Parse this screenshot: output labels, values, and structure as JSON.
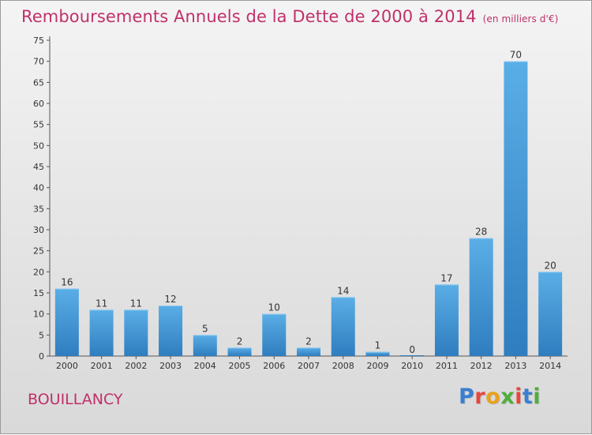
{
  "header": {
    "title": "Remboursements Annuels de la Dette de 2000 à 2014",
    "unit": "(en milliers d'€)"
  },
  "footer": {
    "commune": "BOUILLANCY",
    "logo": [
      "P",
      "r",
      "o",
      "x",
      "i",
      "t",
      "i"
    ]
  },
  "colors": {
    "title": "#c0306a",
    "bar_top": "#5aaee6",
    "bar_bottom": "#2f7dbf",
    "axis": "#333333"
  },
  "chart_data": {
    "type": "bar",
    "title": "Remboursements Annuels de la Dette de 2000 à 2014",
    "categories": [
      "2000",
      "2001",
      "2002",
      "2003",
      "2004",
      "2005",
      "2006",
      "2007",
      "2008",
      "2009",
      "2010",
      "2011",
      "2012",
      "2013",
      "2014"
    ],
    "values": [
      16,
      11,
      11,
      12,
      5,
      2,
      10,
      2,
      14,
      1,
      0,
      17,
      28,
      70,
      20
    ],
    "ylim": [
      0,
      75
    ],
    "yticks": [
      0,
      5,
      10,
      15,
      20,
      25,
      30,
      35,
      40,
      45,
      50,
      55,
      60,
      65,
      70,
      75
    ],
    "grid": false
  }
}
